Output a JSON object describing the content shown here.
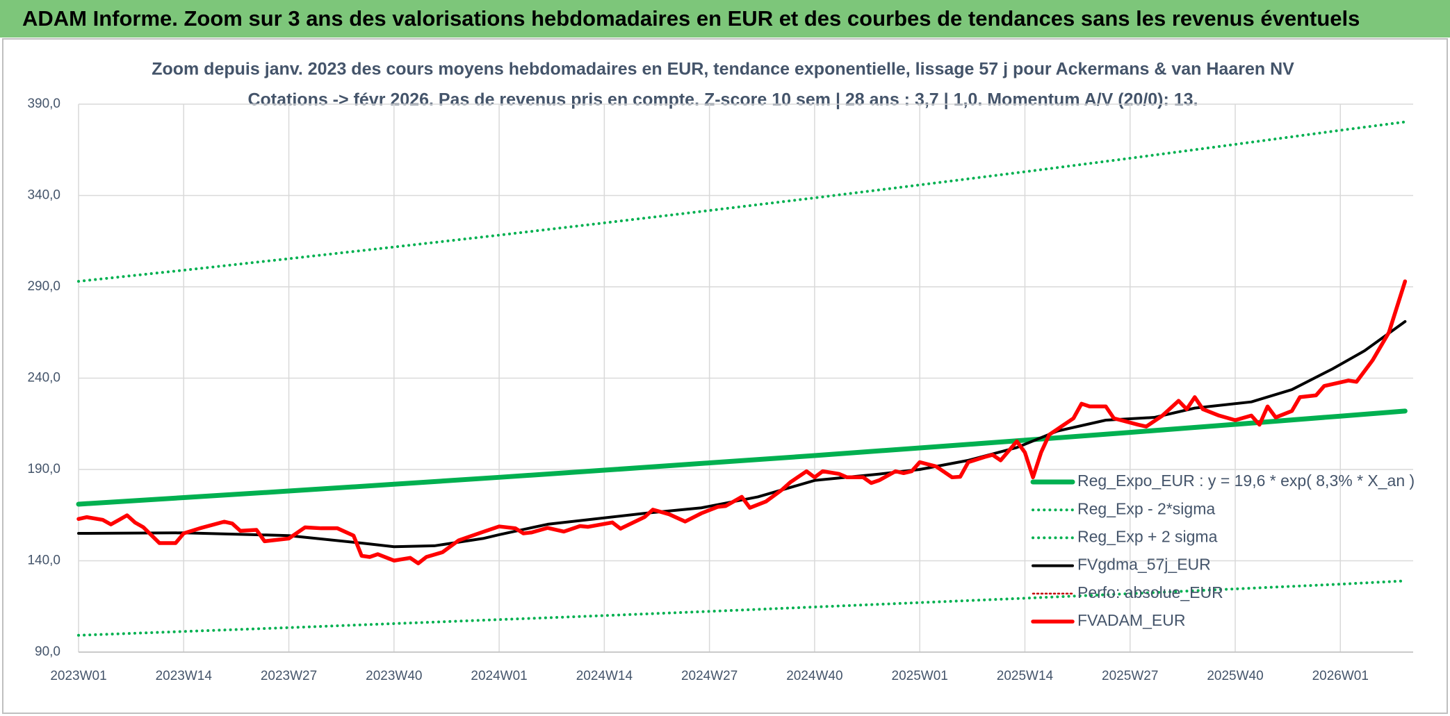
{
  "page_title": "ADAM Informe. Zoom sur 3 ans des valorisations hebdomadaires en EUR et des courbes de tendances sans les revenus éventuels",
  "chart_data": {
    "type": "line",
    "title": "Zoom depuis janv. 2023 des cours moyens hebdomadaires en EUR, tendance exponentielle, lissage 57 j pour Ackermans & van Haaren NV",
    "subtitle": "Cotations -> févr 2026. Pas de revenus pris en compte. Z-score 10 sem | 28 ans : 3,7 | 1,0. Momentum A/V (20/0): 13.",
    "xlim": [
      0,
      165
    ],
    "xticks": [
      {
        "value": 0,
        "label": "2023W01"
      },
      {
        "value": 13,
        "label": "2023W14"
      },
      {
        "value": 26,
        "label": "2023W27"
      },
      {
        "value": 39,
        "label": "2023W40"
      },
      {
        "value": 52,
        "label": "2024W01"
      },
      {
        "value": 65,
        "label": "2024W14"
      },
      {
        "value": 78,
        "label": "2024W27"
      },
      {
        "value": 91,
        "label": "2024W40"
      },
      {
        "value": 104,
        "label": "2025W01"
      },
      {
        "value": 117,
        "label": "2025W14"
      },
      {
        "value": 130,
        "label": "2025W27"
      },
      {
        "value": 143,
        "label": "2025W40"
      },
      {
        "value": 156,
        "label": "2026W01"
      }
    ],
    "ylim": [
      90,
      390
    ],
    "yticks": [
      {
        "value": 90,
        "label": "90,0"
      },
      {
        "value": 140,
        "label": "140,0"
      },
      {
        "value": 190,
        "label": "190,0"
      },
      {
        "value": 240,
        "label": "240,0"
      },
      {
        "value": 290,
        "label": "290,0"
      },
      {
        "value": 340,
        "label": "340,0"
      },
      {
        "value": 390,
        "label": "390,0"
      }
    ],
    "grid": true,
    "legend": "lower right",
    "series": [
      {
        "name": "Reg_Expo_EUR : y = 19,6 * exp( 8,3% *  X_an )",
        "color": "#00b050",
        "style": "solid",
        "x": [
          0,
          13,
          26,
          39,
          52,
          65,
          78,
          91,
          104,
          117,
          130,
          143,
          156,
          164
        ],
        "values": [
          171,
          174.6,
          178.2,
          181.9,
          185.7,
          189.6,
          193.6,
          197.6,
          201.8,
          206.0,
          210.3,
          214.7,
          219.2,
          222.0
        ]
      },
      {
        "name": "Reg_Exp - 2*sigma",
        "color": "#00b050",
        "style": "dotted",
        "x": [
          0,
          13,
          26,
          39,
          52,
          65,
          78,
          91,
          104,
          117,
          130,
          143,
          156,
          164
        ],
        "values": [
          99.2,
          101.3,
          103.4,
          105.6,
          107.8,
          110.0,
          112.3,
          114.7,
          117.1,
          119.5,
          122.0,
          124.6,
          127.2,
          129.0
        ]
      },
      {
        "name": "Reg_Exp + 2 sigma",
        "color": "#00b050",
        "style": "dotted",
        "x": [
          0,
          13,
          26,
          39,
          52,
          65,
          78,
          91,
          104,
          117,
          130,
          143,
          156,
          164
        ],
        "values": [
          293,
          299.1,
          305.4,
          311.8,
          318.3,
          325.0,
          331.8,
          338.7,
          345.8,
          353.0,
          360.4,
          368.0,
          375.7,
          380.3
        ]
      },
      {
        "name": "FVgdma_57j_EUR",
        "color": "#000000",
        "style": "solid-thin",
        "x": [
          0,
          13,
          26,
          35,
          39,
          44,
          50,
          52,
          58,
          70,
          77,
          84,
          91,
          99,
          104,
          110,
          116,
          121,
          127,
          133,
          138,
          145,
          150,
          155,
          159,
          164
        ],
        "values": [
          155,
          155.3,
          153.8,
          149.7,
          147.7,
          148.2,
          152.2,
          154.3,
          160,
          166,
          169,
          175,
          184,
          187.5,
          190,
          195,
          202,
          211,
          217,
          218.5,
          223.6,
          227,
          233.7,
          245,
          255,
          271
        ]
      },
      {
        "name": "Perfo: absolue_EUR",
        "color": "#c00000",
        "style": "dotted-thin",
        "x": [],
        "values": []
      },
      {
        "name": "FVADAM_EUR",
        "color": "#ff0000",
        "style": "solid-thick",
        "x": [
          0,
          1,
          3,
          4,
          5,
          6,
          7,
          8,
          10,
          12,
          13,
          15,
          18,
          19,
          20,
          22,
          23,
          26,
          28,
          30,
          32,
          34,
          35,
          36,
          37,
          39,
          41,
          42,
          43,
          45,
          47,
          50,
          52,
          54,
          55,
          56,
          58,
          60,
          62,
          63,
          66,
          67,
          70,
          71,
          73,
          75,
          77,
          79,
          80,
          82,
          83,
          85,
          87,
          88,
          90,
          91,
          92,
          94,
          95,
          97,
          98,
          99,
          101,
          102,
          103,
          104,
          106,
          108,
          109,
          110,
          112,
          113,
          114,
          116,
          117,
          118,
          119,
          120,
          123,
          124,
          125,
          127,
          128,
          131,
          132,
          134,
          136,
          137,
          138,
          139,
          141,
          143,
          145,
          146,
          147,
          148,
          150,
          151,
          153,
          154,
          157,
          158,
          160,
          162,
          164
        ],
        "values": [
          162.9,
          163.9,
          162.4,
          159.9,
          162.4,
          164.9,
          160.9,
          158.4,
          149.7,
          149.7,
          155,
          157.8,
          161.4,
          160.4,
          156.4,
          156.9,
          150.7,
          152.2,
          158.3,
          157.8,
          157.8,
          153.8,
          142.7,
          142.1,
          143.6,
          140.1,
          141.6,
          138.6,
          142.1,
          144.7,
          151.2,
          155.8,
          158.8,
          157.8,
          155,
          155.5,
          158,
          156,
          159,
          158.6,
          161,
          157.6,
          164,
          168,
          165.5,
          161.5,
          166,
          169.5,
          170,
          175,
          169,
          172.5,
          179,
          183,
          189,
          185.7,
          189,
          187.6,
          185.7,
          185.7,
          182.6,
          184.1,
          189,
          188,
          189,
          194,
          191.7,
          185.7,
          186,
          194,
          196.8,
          198,
          195,
          205.4,
          199.3,
          185.7,
          199.3,
          209,
          218,
          226,
          224.5,
          224.5,
          218,
          214.5,
          213.5,
          219.5,
          227.6,
          223,
          229.6,
          223,
          219.5,
          217,
          219.5,
          214.5,
          224.5,
          218.5,
          222,
          229.6,
          230.6,
          235.7,
          238.7,
          238,
          249.9,
          265,
          293
        ]
      }
    ]
  }
}
